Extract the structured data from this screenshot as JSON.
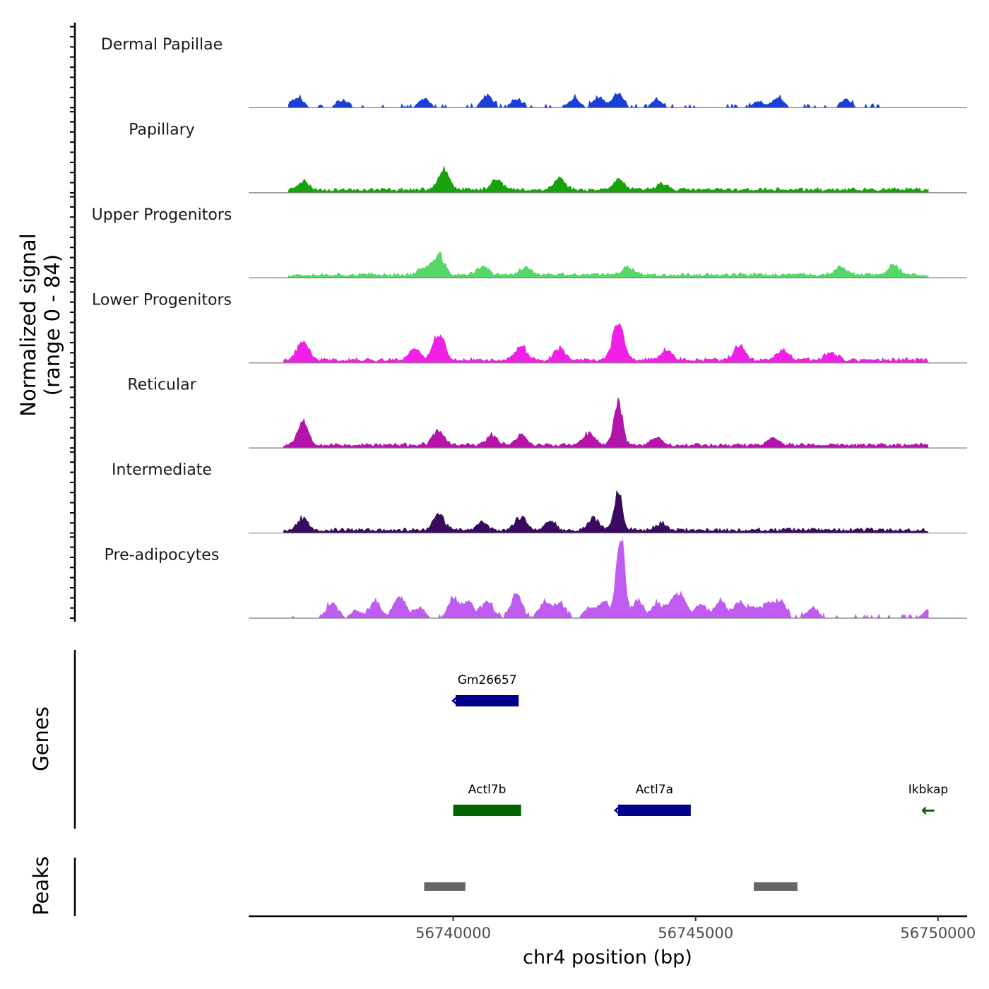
{
  "chart_data": {
    "type": "area",
    "title": "",
    "ylabel_line1": "Normalized signal",
    "ylabel_line2": "(range 0 - 84)",
    "ylim": [
      0,
      84
    ],
    "xlabel": "chr4 position (bp)",
    "xlim": [
      56735780,
      56750600
    ],
    "x_ticks": [
      56740000,
      56745000,
      56750000
    ],
    "x_tick_labels": [
      "56740000",
      "56745000",
      "56750000"
    ],
    "coverage_tracks": [
      {
        "name": "Dermal Papillae",
        "color": "#1a3fd6",
        "profile": "sparse",
        "seed": 11,
        "start": 56736600,
        "end": 56748800,
        "peaks": [
          [
            56736800,
            10
          ],
          [
            56737700,
            7
          ],
          [
            56739400,
            9
          ],
          [
            56740700,
            12
          ],
          [
            56741300,
            8
          ],
          [
            56742500,
            9
          ],
          [
            56743000,
            11
          ],
          [
            56743400,
            13
          ],
          [
            56744200,
            8
          ],
          [
            56746300,
            6
          ],
          [
            56746700,
            10
          ],
          [
            56748100,
            8
          ]
        ]
      },
      {
        "name": "Papillary",
        "color": "#18a30c",
        "profile": "continuous",
        "seed": 23,
        "start": 56736600,
        "end": 56749800,
        "peaks": [
          [
            56736900,
            9
          ],
          [
            56739800,
            23
          ],
          [
            56740900,
            11
          ],
          [
            56742200,
            12
          ],
          [
            56743400,
            11
          ],
          [
            56744300,
            7
          ]
        ]
      },
      {
        "name": "Upper Progenitors",
        "color": "#55d76a",
        "profile": "continuous",
        "seed": 37,
        "start": 56736600,
        "end": 56749800,
        "peaks": [
          [
            56739700,
            20
          ],
          [
            56739400,
            8
          ],
          [
            56740600,
            9
          ],
          [
            56741500,
            8
          ],
          [
            56743600,
            9
          ],
          [
            56748000,
            9
          ],
          [
            56749100,
            10
          ]
        ]
      },
      {
        "name": "Lower Progenitors",
        "color": "#f020e6",
        "profile": "continuous",
        "seed": 41,
        "start": 56736500,
        "end": 56749800,
        "peaks": [
          [
            56736900,
            20
          ],
          [
            56739700,
            28
          ],
          [
            56739200,
            12
          ],
          [
            56741400,
            14
          ],
          [
            56742200,
            12
          ],
          [
            56743400,
            38
          ],
          [
            56744400,
            10
          ],
          [
            56745900,
            14
          ],
          [
            56746800,
            10
          ],
          [
            56747800,
            9
          ]
        ]
      },
      {
        "name": "Reticular",
        "color": "#b514aa",
        "profile": "continuous",
        "seed": 53,
        "start": 56736500,
        "end": 56749800,
        "peaks": [
          [
            56736900,
            25
          ],
          [
            56739700,
            15
          ],
          [
            56740800,
            10
          ],
          [
            56741400,
            11
          ],
          [
            56742800,
            12
          ],
          [
            56743400,
            48
          ],
          [
            56744200,
            8
          ],
          [
            56746600,
            8
          ]
        ]
      },
      {
        "name": "Intermediate",
        "color": "#3a0a5e",
        "profile": "continuous",
        "seed": 67,
        "start": 56736500,
        "end": 56749800,
        "peaks": [
          [
            56736900,
            13
          ],
          [
            56739700,
            17
          ],
          [
            56740600,
            8
          ],
          [
            56741400,
            14
          ],
          [
            56742000,
            10
          ],
          [
            56742900,
            12
          ],
          [
            56743400,
            42
          ],
          [
            56744300,
            7
          ]
        ]
      },
      {
        "name": "Pre-adipocytes",
        "color": "#c05cf2",
        "profile": "sparse",
        "seed": 79,
        "start": 56736600,
        "end": 56749800,
        "peaks": [
          [
            56737500,
            16
          ],
          [
            56738000,
            8
          ],
          [
            56738400,
            17
          ],
          [
            56738900,
            23
          ],
          [
            56739300,
            10
          ],
          [
            56740000,
            18
          ],
          [
            56740300,
            17
          ],
          [
            56740700,
            17
          ],
          [
            56741300,
            25
          ],
          [
            56741900,
            17
          ],
          [
            56742200,
            14
          ],
          [
            56742800,
            10
          ],
          [
            56743100,
            17
          ],
          [
            56743450,
            84
          ],
          [
            56743800,
            17
          ],
          [
            56744200,
            14
          ],
          [
            56744500,
            14
          ],
          [
            56744700,
            23
          ],
          [
            56745100,
            14
          ],
          [
            56745500,
            17
          ],
          [
            56745900,
            17
          ],
          [
            56746200,
            10
          ],
          [
            56746500,
            14
          ],
          [
            56746750,
            17
          ],
          [
            56747400,
            10
          ],
          [
            56749800,
            8
          ]
        ]
      }
    ],
    "genes": [
      {
        "name": "Gm26657",
        "start": 56740050,
        "end": 56741350,
        "strand": "-",
        "color": "#00008b",
        "row": 0
      },
      {
        "name": "Actl7b",
        "start": 56740000,
        "end": 56741400,
        "strand": "+",
        "color": "#006400",
        "row": 1
      },
      {
        "name": "Actl7a",
        "start": 56743400,
        "end": 56744900,
        "strand": "-",
        "color": "#00008b",
        "row": 1
      },
      {
        "name": "Ikbkap",
        "start": 56749700,
        "end": 56750300,
        "strand": "-",
        "color": "#006400",
        "row": 1
      }
    ],
    "gene_arrow": "←",
    "gene_track_label": "Genes",
    "peaks_track_label": "Peaks",
    "peak_color": "#666666",
    "peaks": [
      {
        "start": 56739400,
        "end": 56740250
      },
      {
        "start": 56746200,
        "end": 56747100
      }
    ]
  }
}
